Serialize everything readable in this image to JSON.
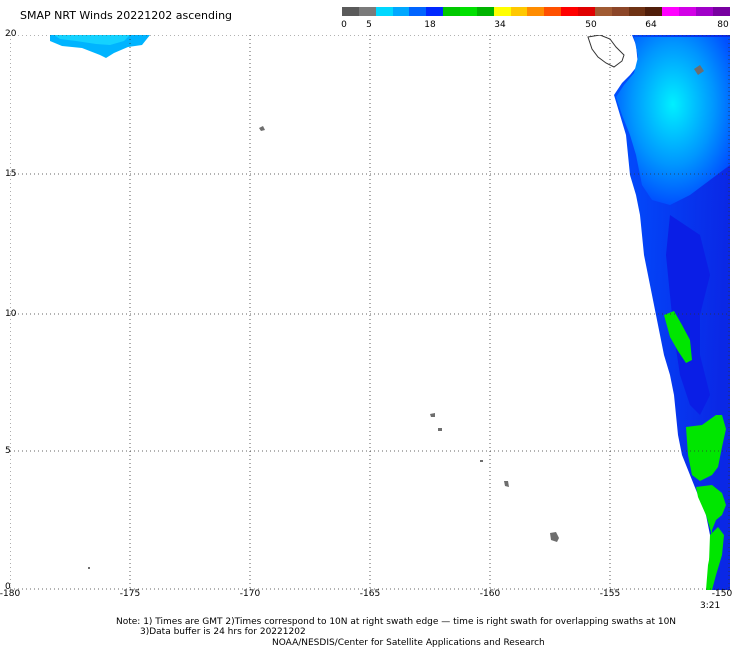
{
  "header": {
    "title": "SMAP NRT Winds 20221202 ascending"
  },
  "colorbar": {
    "ticks": [
      "0",
      "5",
      "18",
      "34",
      "50",
      "64",
      "80"
    ],
    "segments": [
      {
        "color": "#5a5a5a"
      },
      {
        "color": "#7a7a7a"
      },
      {
        "color": "#00d8ff"
      },
      {
        "color": "#00a8ff"
      },
      {
        "color": "#0064ff"
      },
      {
        "color": "#0028ff"
      },
      {
        "color": "#00c800"
      },
      {
        "color": "#00e000"
      },
      {
        "color": "#00b400"
      },
      {
        "color": "#ffff00"
      },
      {
        "color": "#ffc800"
      },
      {
        "color": "#ff8c00"
      },
      {
        "color": "#ff5000"
      },
      {
        "color": "#ff0000"
      },
      {
        "color": "#e00000"
      },
      {
        "color": "#a05a32"
      },
      {
        "color": "#8c4628"
      },
      {
        "color": "#6e3214"
      },
      {
        "color": "#501e0a"
      },
      {
        "color": "#ff00ff"
      },
      {
        "color": "#d200e6"
      },
      {
        "color": "#a000c8"
      },
      {
        "color": "#7800a0"
      }
    ]
  },
  "map": {
    "lat_labels": [
      "20",
      "15",
      "10",
      "5",
      "0"
    ],
    "lon_labels": [
      "-180",
      "-175",
      "-170",
      "-165",
      "-160",
      "-155",
      "-150"
    ],
    "colors": {
      "land": "#6e6e6e",
      "wind_light": "#00e6ff",
      "wind_mid": "#0a78ff",
      "wind_dark": "#0a28e6",
      "wind_green": "#00e600",
      "grid": "#333333"
    }
  },
  "footer": {
    "time": "3:21",
    "note_line1": "Note: 1) Times are GMT 2)Times correspond to 10N at right swath edge — time is right swath for overlapping swaths at 10N",
    "note_line2": "3)Data buffer is 24 hrs for 20221202",
    "note_line3": "NOAA/NESDIS/Center for Satellite Applications and Research"
  }
}
